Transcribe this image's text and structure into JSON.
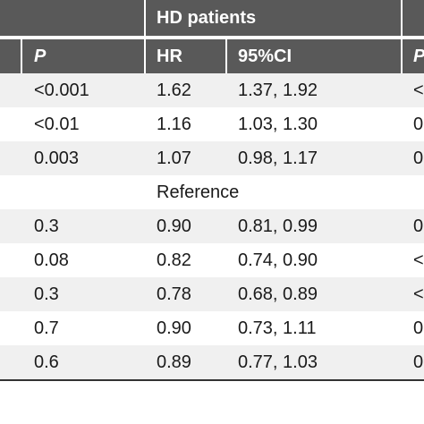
{
  "table": {
    "group_header": "HD patients",
    "columns": [
      "P",
      "HR",
      "95%CI"
    ],
    "rows": [
      {
        "p": "<0.001",
        "hr": "1.62",
        "ci": "1.37, 1.92",
        "next": "<"
      },
      {
        "p": "<0.01",
        "hr": "1.16",
        "ci": "1.03, 1.30",
        "next": "0"
      },
      {
        "p": "0.003",
        "hr": "1.07",
        "ci": "0.98, 1.17",
        "next": "0"
      },
      {
        "p": "",
        "hr": "Reference",
        "ci": "",
        "next": ""
      },
      {
        "p": "0.3",
        "hr": "0.90",
        "ci": "0.81, 0.99",
        "next": "0"
      },
      {
        "p": "0.08",
        "hr": "0.82",
        "ci": "0.74, 0.90",
        "next": "<"
      },
      {
        "p": "0.3",
        "hr": "0.78",
        "ci": "0.68, 0.89",
        "next": "<"
      },
      {
        "p": "0.7",
        "hr": "0.90",
        "ci": "0.73, 1.11",
        "next": "0"
      },
      {
        "p": "0.6",
        "hr": "0.89",
        "ci": "0.77, 1.03",
        "next": "0"
      }
    ]
  },
  "colors": {
    "header_bg": "#595959",
    "row_alt": "#f0f0f0"
  }
}
